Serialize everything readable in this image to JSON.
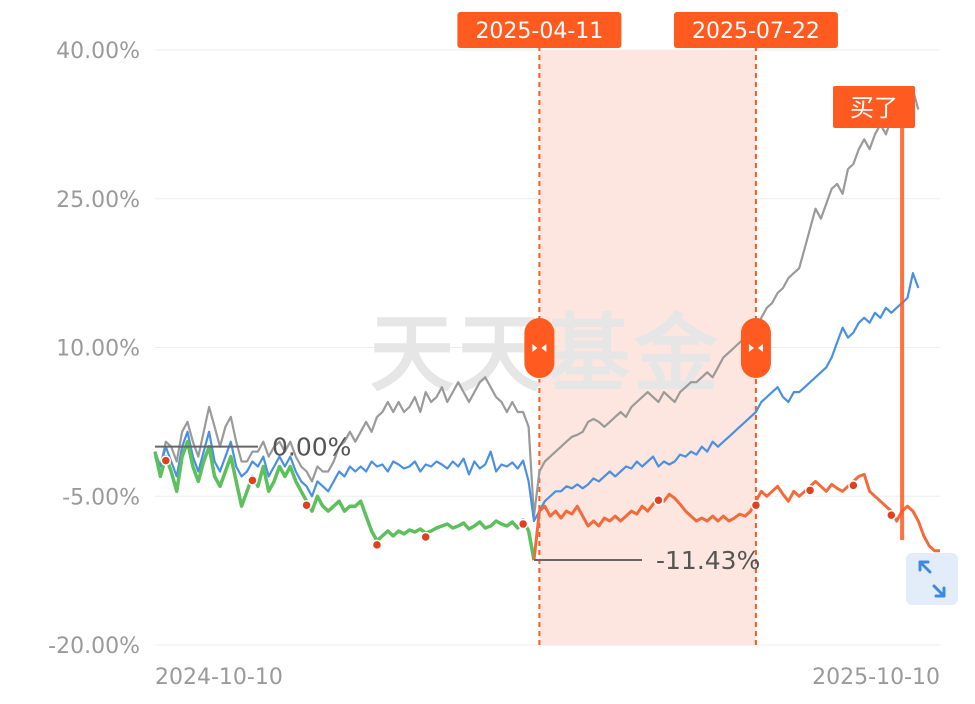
{
  "chart_data": {
    "type": "line",
    "x_range": [
      "2024-10-10",
      "2025-10-10"
    ],
    "ylim": [
      -20,
      40
    ],
    "y_ticks": [
      40,
      25,
      10,
      -5,
      -20
    ],
    "y_tick_labels": [
      "40.00%",
      "25.00%",
      "10.00%",
      "-5.00%",
      "-20.00%"
    ],
    "x_tick_labels": [
      "2024-10-10",
      "2025-10-10"
    ],
    "grid": true,
    "watermark": "天天基金",
    "period": {
      "start": "2025-04-11",
      "end": "2025-07-22",
      "start_index": 71,
      "end_index": 111
    },
    "markers": {
      "max_label": "0.00%",
      "max_value": 0.0,
      "min_label": "-11.43%",
      "min_value": -11.43,
      "min_index": 70
    },
    "buy": {
      "label": "买了",
      "index": 138
    },
    "split_index": 70,
    "colors": {
      "fund_before": "#5cc05c",
      "fund_after": "#f26b3a",
      "benchmark": "#4a90e2",
      "index": "#9a9a9a",
      "accent": "#ff5a1f",
      "band": "#fde6df",
      "grid": "#eeeeee",
      "marker_line": "#666666"
    },
    "series": [
      {
        "values": [
          -0.5,
          -3.0,
          -1.0,
          -2.5,
          -4.5,
          -1.0,
          0.5,
          -2.0,
          -3.5,
          -1.5,
          0.0,
          -3.0,
          -4.0,
          -2.5,
          -1.0,
          -3.5,
          -6.0,
          -4.5,
          -3.0,
          -4.0,
          -2.0,
          -4.5,
          -3.5,
          -2.0,
          -3.0,
          -2.0,
          -3.5,
          -4.5,
          -5.5,
          -6.5,
          -5.0,
          -6.0,
          -6.5,
          -6.0,
          -5.5,
          -6.5,
          -6.0,
          -6.0,
          -5.5,
          -7.0,
          -8.5,
          -9.5,
          -9.0,
          -8.5,
          -9.0,
          -8.5,
          -8.8,
          -8.4,
          -8.6,
          -8.3,
          -8.7,
          -8.5,
          -8.2,
          -8.0,
          -7.8,
          -8.2,
          -8.0,
          -7.7,
          -8.3,
          -8.0,
          -7.6,
          -8.2,
          -8.0,
          -7.5,
          -7.8,
          -8.0,
          -7.6,
          -8.2,
          -7.4,
          -8.5,
          -11.43,
          -6.5,
          -6.0,
          -7.0,
          -6.5,
          -7.2,
          -6.5,
          -6.8,
          -6.0,
          -7.0,
          -8.0,
          -7.5,
          -8.0,
          -7.2,
          -7.5,
          -7.0,
          -7.5,
          -7.0,
          -6.5,
          -6.8,
          -6.0,
          -6.5,
          -5.8,
          -5.0,
          -5.5,
          -4.8,
          -5.2,
          -5.8,
          -6.5,
          -7.0,
          -7.5,
          -7.2,
          -7.5,
          -7.0,
          -7.5,
          -7.0,
          -7.5,
          -7.2,
          -6.8,
          -7.0,
          -6.5,
          -5.5,
          -4.5,
          -5.0,
          -4.5,
          -4.0,
          -4.8,
          -5.5,
          -4.5,
          -5.0,
          -4.5,
          -4.0,
          -3.5,
          -4.0,
          -4.5,
          -3.8,
          -4.2,
          -4.5,
          -4.0,
          -3.5,
          -3.0,
          -2.8,
          -4.5,
          -5.0,
          -5.5,
          -6.0,
          -6.5,
          -7.5,
          -6.5,
          -6.0,
          -6.5,
          -7.5,
          -9.0,
          -10.0,
          -10.5,
          -10.5
        ]
      },
      {
        "values": [
          -0.5,
          -2.0,
          0.0,
          -1.5,
          -3.0,
          0.0,
          1.5,
          -1.0,
          -2.5,
          -0.5,
          1.5,
          -1.5,
          -2.5,
          -1.0,
          0.5,
          -2.0,
          -3.0,
          -2.5,
          -1.5,
          -2.0,
          -1.0,
          -3.0,
          -2.0,
          -1.0,
          -2.0,
          -1.0,
          -2.5,
          -3.5,
          -4.0,
          -5.0,
          -3.5,
          -4.0,
          -4.5,
          -3.5,
          -2.5,
          -3.0,
          -2.0,
          -2.5,
          -2.0,
          -2.5,
          -1.5,
          -2.0,
          -1.8,
          -2.5,
          -1.5,
          -1.8,
          -2.2,
          -2.0,
          -1.5,
          -2.5,
          -1.8,
          -2.0,
          -1.5,
          -1.8,
          -2.2,
          -1.5,
          -2.0,
          -1.2,
          -2.8,
          -1.5,
          -2.2,
          -1.8,
          -0.5,
          -2.5,
          -1.8,
          -2.0,
          -1.6,
          -2.2,
          -1.4,
          -3.5,
          -7.5,
          -6.5,
          -5.5,
          -5.0,
          -4.5,
          -4.5,
          -4.0,
          -4.2,
          -3.8,
          -4.2,
          -3.8,
          -3.2,
          -3.5,
          -3.0,
          -2.5,
          -3.0,
          -2.5,
          -2.0,
          -2.2,
          -1.5,
          -2.0,
          -1.5,
          -1.0,
          -2.0,
          -1.5,
          -1.8,
          -1.5,
          -0.8,
          -1.0,
          -0.5,
          -0.8,
          0.0,
          -0.5,
          0.5,
          0.0,
          0.5,
          1.0,
          1.5,
          2.0,
          2.5,
          3.0,
          3.5,
          4.5,
          5.0,
          5.5,
          6.0,
          5.0,
          4.5,
          5.5,
          5.5,
          6.0,
          6.5,
          7.0,
          7.5,
          8.0,
          9.0,
          10.5,
          12.0,
          11.0,
          11.5,
          12.5,
          13.0,
          12.5,
          13.5,
          13.0,
          14.0,
          13.5,
          14.0,
          14.5,
          15.0,
          17.5,
          16.0
        ]
      },
      {
        "values": [
          -1.0,
          -2.0,
          0.5,
          0.0,
          -1.5,
          1.5,
          2.5,
          0.5,
          -1.0,
          1.5,
          4.0,
          2.0,
          0.0,
          2.0,
          3.0,
          0.5,
          -1.5,
          -1.5,
          -0.5,
          -0.5,
          0.5,
          -1.0,
          0.0,
          0.5,
          -0.5,
          0.5,
          -1.0,
          -2.0,
          -2.5,
          -3.5,
          -2.0,
          -2.5,
          -2.5,
          -1.5,
          0.0,
          0.5,
          1.5,
          0.5,
          1.5,
          2.5,
          1.5,
          3.0,
          3.5,
          4.5,
          3.5,
          4.5,
          3.5,
          4.0,
          5.0,
          3.5,
          5.5,
          4.5,
          5.0,
          6.0,
          4.5,
          5.5,
          6.5,
          5.5,
          4.5,
          5.5,
          6.5,
          7.0,
          6.0,
          5.0,
          4.5,
          3.5,
          4.5,
          3.5,
          3.5,
          2.0,
          -7.0,
          -2.5,
          -1.5,
          -1.0,
          -0.5,
          0.0,
          0.5,
          1.0,
          1.2,
          1.5,
          2.5,
          2.8,
          2.5,
          2.0,
          2.5,
          3.0,
          3.5,
          3.0,
          4.0,
          4.5,
          5.0,
          5.5,
          5.0,
          4.5,
          5.5,
          5.0,
          4.5,
          5.5,
          6.0,
          6.5,
          6.5,
          7.0,
          7.5,
          7.0,
          8.0,
          9.0,
          9.5,
          10.0,
          10.5,
          11.0,
          11.5,
          12.0,
          13.0,
          14.0,
          14.5,
          15.5,
          16.0,
          17.0,
          17.5,
          18.0,
          20.0,
          22.0,
          24.0,
          23.0,
          24.5,
          26.0,
          26.5,
          25.5,
          28.0,
          28.5,
          30.0,
          31.0,
          30.0,
          31.5,
          32.5,
          31.5,
          33.0,
          34.5,
          33.0,
          35.0,
          36.0,
          34.0
        ]
      }
    ]
  }
}
